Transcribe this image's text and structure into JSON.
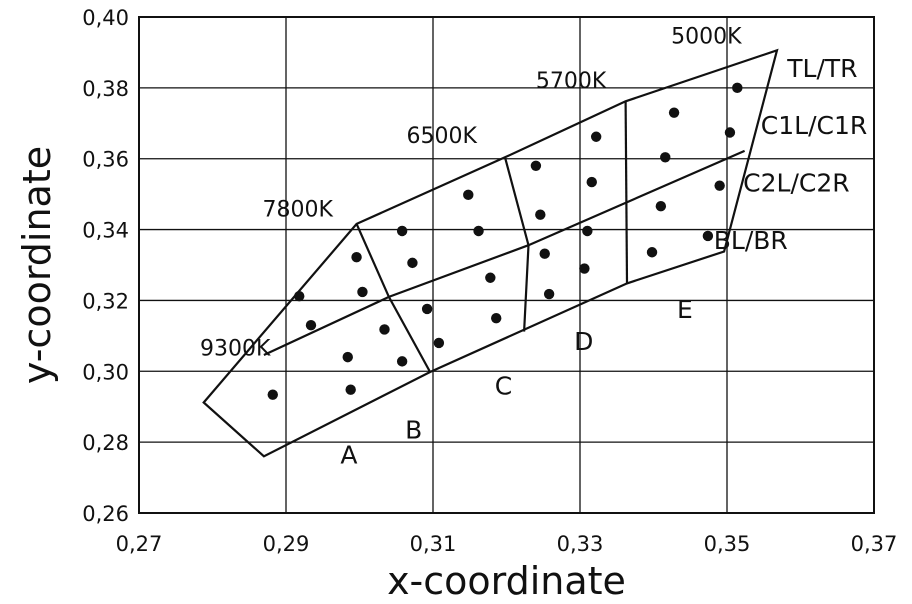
{
  "chart_data": {
    "type": "scatter",
    "title": "",
    "xlabel": "x-coordinate",
    "ylabel": "y-coordinate",
    "xlim": [
      0.27,
      0.37
    ],
    "ylim": [
      0.26,
      0.4
    ],
    "grid": true,
    "x_ticks": [
      "0,27",
      "0,29",
      "0,31",
      "0,33",
      "0,35",
      "0,37"
    ],
    "y_ticks": [
      "0,26",
      "0,28",
      "0,30",
      "0,32",
      "0,34",
      "0,36",
      "0,38",
      "0,40"
    ],
    "x_tick_values": [
      0.27,
      0.29,
      0.31,
      0.33,
      0.35,
      0.37
    ],
    "y_tick_values": [
      0.26,
      0.28,
      0.3,
      0.32,
      0.34,
      0.36,
      0.38,
      0.4
    ],
    "boundary": {
      "outline": [
        [
          0.2788,
          0.2912
        ],
        [
          0.2996,
          0.3416
        ],
        [
          0.3198,
          0.3604
        ],
        [
          0.3362,
          0.3762
        ],
        [
          0.3568,
          0.3906
        ],
        [
          0.3496,
          0.3338
        ],
        [
          0.3364,
          0.3248
        ],
        [
          0.3096,
          0.2998
        ],
        [
          0.287,
          0.276
        ]
      ],
      "dividers": [
        [
          [
            0.2996,
            0.3416
          ],
          [
            0.304,
            0.321
          ],
          [
            0.3096,
            0.2998
          ]
        ],
        [
          [
            0.3198,
            0.3604
          ],
          [
            0.323,
            0.3356
          ],
          [
            0.3224,
            0.3112
          ]
        ],
        [
          [
            0.3362,
            0.3762
          ],
          [
            0.3364,
            0.3248
          ]
        ]
      ],
      "band_lines": [
        [
          [
            0.287,
            0.3046
          ],
          [
            0.304,
            0.321
          ],
          [
            0.323,
            0.3356
          ],
          [
            0.3524,
            0.3622
          ]
        ]
      ]
    },
    "series": [
      {
        "points": [
          {
            "x": 0.2882,
            "y": 0.2934
          },
          {
            "x": 0.2918,
            "y": 0.3212
          },
          {
            "x": 0.2934,
            "y": 0.313
          },
          {
            "x": 0.2984,
            "y": 0.304
          },
          {
            "x": 0.2988,
            "y": 0.2948
          },
          {
            "x": 0.2996,
            "y": 0.3322
          },
          {
            "x": 0.3004,
            "y": 0.3224
          },
          {
            "x": 0.3034,
            "y": 0.3118
          },
          {
            "x": 0.3058,
            "y": 0.3028
          },
          {
            "x": 0.3058,
            "y": 0.3396
          },
          {
            "x": 0.3072,
            "y": 0.3306
          },
          {
            "x": 0.3092,
            "y": 0.3176
          },
          {
            "x": 0.3108,
            "y": 0.308
          },
          {
            "x": 0.3148,
            "y": 0.3498
          },
          {
            "x": 0.3162,
            "y": 0.3396
          },
          {
            "x": 0.3178,
            "y": 0.3264
          },
          {
            "x": 0.3186,
            "y": 0.315
          },
          {
            "x": 0.324,
            "y": 0.358
          },
          {
            "x": 0.3246,
            "y": 0.3442
          },
          {
            "x": 0.3252,
            "y": 0.3332
          },
          {
            "x": 0.3258,
            "y": 0.3218
          },
          {
            "x": 0.3306,
            "y": 0.329
          },
          {
            "x": 0.331,
            "y": 0.3396
          },
          {
            "x": 0.3316,
            "y": 0.3534
          },
          {
            "x": 0.3322,
            "y": 0.3662
          },
          {
            "x": 0.3398,
            "y": 0.3336
          },
          {
            "x": 0.341,
            "y": 0.3466
          },
          {
            "x": 0.3416,
            "y": 0.3604
          },
          {
            "x": 0.3428,
            "y": 0.373
          },
          {
            "x": 0.3474,
            "y": 0.3382
          },
          {
            "x": 0.349,
            "y": 0.3524
          },
          {
            "x": 0.3504,
            "y": 0.3674
          },
          {
            "x": 0.3514,
            "y": 0.38
          }
        ]
      }
    ],
    "annotations": {
      "temperatures": [
        {
          "text": "9300K",
          "x": 0.2783,
          "y": 0.3045
        },
        {
          "text": "7800K",
          "x": 0.2868,
          "y": 0.3437
        },
        {
          "text": "6500K",
          "x": 0.3064,
          "y": 0.3645
        },
        {
          "text": "5700K",
          "x": 0.324,
          "y": 0.38
        },
        {
          "text": "5000K",
          "x": 0.3424,
          "y": 0.3925
        }
      ],
      "rows": [
        {
          "text": "TL/TR",
          "x": 0.3582,
          "y": 0.383
        },
        {
          "text": "C1L/C1R",
          "x": 0.3546,
          "y": 0.367
        },
        {
          "text": "C2L/C2R",
          "x": 0.3522,
          "y": 0.3507
        },
        {
          "text": "BL/BR",
          "x": 0.3482,
          "y": 0.3345
        }
      ],
      "regions": [
        {
          "text": "A",
          "x": 0.2974,
          "y": 0.274
        },
        {
          "text": "B",
          "x": 0.3062,
          "y": 0.281
        },
        {
          "text": "C",
          "x": 0.3184,
          "y": 0.2935
        },
        {
          "text": "D",
          "x": 0.3292,
          "y": 0.306
        },
        {
          "text": "E",
          "x": 0.3432,
          "y": 0.315
        }
      ]
    }
  }
}
